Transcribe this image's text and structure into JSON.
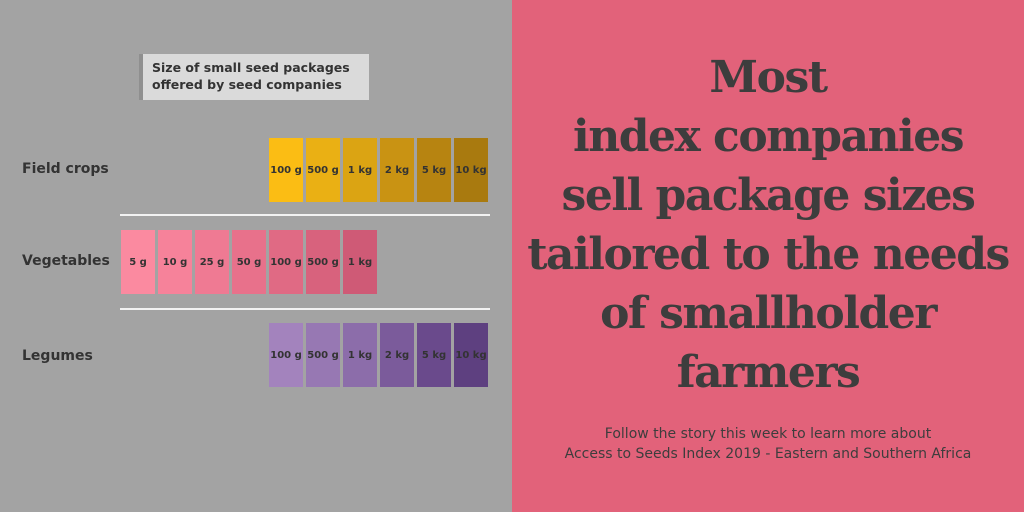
{
  "legend": {
    "line1": "Size of small seed packages",
    "line2": "offered by seed companies"
  },
  "rows": [
    {
      "label": "Field crops",
      "packages": [
        {
          "size": "100 g",
          "color": "#fbbd14"
        },
        {
          "size": "500 g",
          "color": "#eab014"
        },
        {
          "size": "1 kg",
          "color": "#dba413"
        },
        {
          "size": "2 kg",
          "color": "#c99313"
        },
        {
          "size": "5 kg",
          "color": "#b78411"
        },
        {
          "size": "10 kg",
          "color": "#a97a0f"
        }
      ]
    },
    {
      "label": "Vegetables",
      "packages": [
        {
          "size": "5 g",
          "color": "#fb8aa0"
        },
        {
          "size": "10 g",
          "color": "#f6829a"
        },
        {
          "size": "25 g",
          "color": "#ef7a93"
        },
        {
          "size": "50 g",
          "color": "#e8718b"
        },
        {
          "size": "100 g",
          "color": "#e06a84"
        },
        {
          "size": "500 g",
          "color": "#d8627d"
        },
        {
          "size": "1 kg",
          "color": "#cf5a76"
        }
      ]
    },
    {
      "label": "Legumes",
      "packages": [
        {
          "size": "100 g",
          "color": "#a383bd"
        },
        {
          "size": "500 g",
          "color": "#9778b3"
        },
        {
          "size": "1 kg",
          "color": "#8c6daa"
        },
        {
          "size": "2 kg",
          "color": "#7b5b9b"
        },
        {
          "size": "5 kg",
          "color": "#6a4a8c"
        },
        {
          "size": "10 kg",
          "color": "#5e4080"
        }
      ]
    }
  ],
  "headline": {
    "lines": [
      "Most",
      "index companies",
      "sell package sizes",
      "tailored to the needs",
      "of smallholder",
      "farmers"
    ]
  },
  "footnote": {
    "line1": "Follow the story this week to learn more about",
    "line2": "Access to Seeds Index 2019 - Eastern and Southern Africa"
  },
  "colors": {
    "left_background": "#a3a3a3",
    "right_background": "#e2627a",
    "text": "#3d3d3d"
  }
}
